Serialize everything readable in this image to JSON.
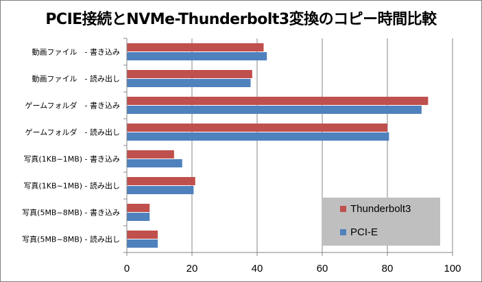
{
  "chart_data": {
    "type": "bar",
    "orientation": "horizontal",
    "title": "PCIE接続とNVMe-Thunderbolt3変換のコピー時間比較",
    "categories": [
      "動画ファイル　- 書き込み",
      "動画ファイル　- 読み出し",
      "ゲームフォルダ　- 書き込み",
      "ゲームフォルダ　- 読み出し",
      "写真(1KB~1MB) - 書き込み",
      "写真(1KB~1MB) - 読み出し",
      "写真(5MB~8MB) - 書き込み",
      "写真(5MB~8MB) - 読み出し"
    ],
    "series": [
      {
        "name": "Thunderbolt3",
        "color": "#c0504d",
        "values": [
          42,
          38.5,
          92.5,
          80,
          14.5,
          21,
          7,
          9.5
        ]
      },
      {
        "name": "PCI-E",
        "color": "#4f81bd",
        "values": [
          43,
          38,
          90.5,
          80.5,
          17,
          20.5,
          7,
          9.5
        ]
      }
    ],
    "xlim": [
      0,
      100
    ],
    "xticks": [
      "0",
      "20",
      "40",
      "60",
      "80",
      "100"
    ],
    "grid": true,
    "legend_position": "bottom-right"
  }
}
